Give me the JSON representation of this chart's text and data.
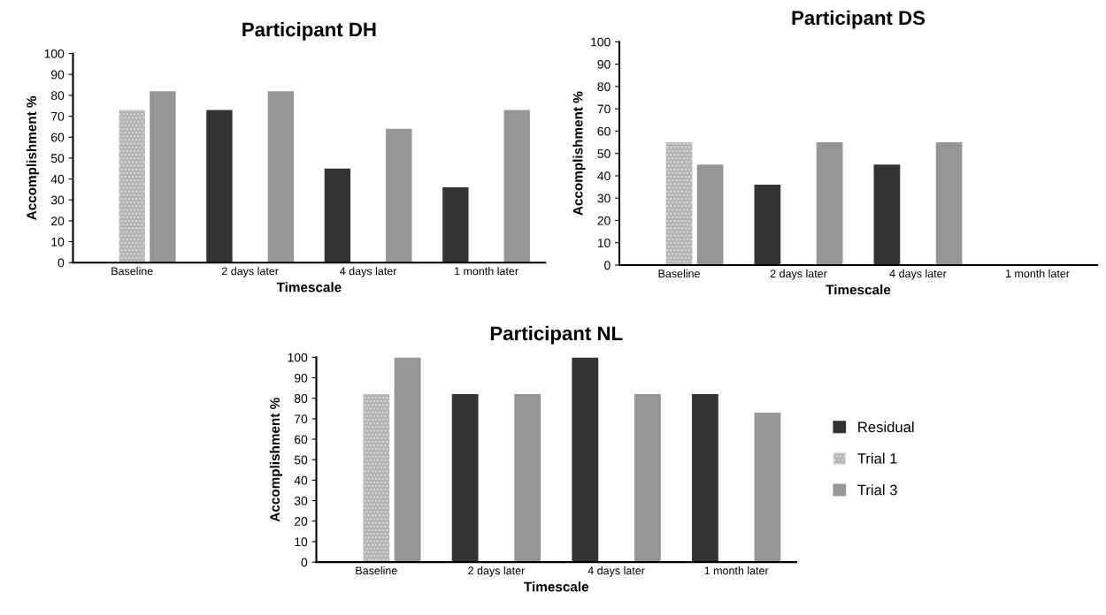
{
  "chart_data": [
    {
      "type": "bar",
      "title": "Participant DH",
      "xlabel": "Timescale",
      "ylabel": "Accomplishment %",
      "categories": [
        "Baseline",
        "2 days later",
        "4 days later",
        "1 month later"
      ],
      "ylim": [
        0,
        100
      ],
      "yticks": [
        0,
        10,
        20,
        30,
        40,
        50,
        60,
        70,
        80,
        90,
        100
      ],
      "grid": false,
      "legend": false,
      "series": [
        {
          "color": "#333333",
          "values": [
            null,
            73,
            45,
            36
          ]
        },
        {
          "color": "#b4b4b4",
          "values": [
            73,
            null,
            null,
            null
          ]
        },
        {
          "color": "#969696",
          "values": [
            82,
            82,
            64,
            73
          ]
        }
      ]
    },
    {
      "type": "bar",
      "title": "Participant DS",
      "xlabel": "Timescale",
      "ylabel": "Accomplishment %",
      "categories": [
        "Baseline",
        "2 days later",
        "4 days later",
        "1 month later"
      ],
      "ylim": [
        0,
        100
      ],
      "yticks": [
        0,
        10,
        20,
        30,
        40,
        50,
        60,
        70,
        80,
        90,
        100
      ],
      "grid": false,
      "legend": false,
      "series": [
        {
          "color": "#333333",
          "values": [
            null,
            36,
            45,
            null
          ]
        },
        {
          "color": "#b4b4b4",
          "values": [
            55,
            null,
            null,
            null
          ]
        },
        {
          "color": "#969696",
          "values": [
            45,
            55,
            55,
            null
          ]
        }
      ]
    },
    {
      "type": "bar",
      "title": "Participant NL",
      "xlabel": "Timescale",
      "ylabel": "Accomplishment %",
      "categories": [
        "Baseline",
        "2 days later",
        "4 days later",
        "1 month later"
      ],
      "ylim": [
        0,
        100
      ],
      "yticks": [
        0,
        10,
        20,
        30,
        40,
        50,
        60,
        70,
        80,
        90,
        100
      ],
      "grid": false,
      "legend": "right",
      "series": [
        {
          "name": "Residual",
          "color": "#333333",
          "values": [
            null,
            82,
            100,
            82
          ]
        },
        {
          "name": "Trial 1",
          "color": "#b4b4b4",
          "values": [
            82,
            null,
            null,
            null
          ]
        },
        {
          "name": "Trial 3",
          "color": "#969696",
          "values": [
            100,
            82,
            82,
            73
          ]
        }
      ]
    }
  ]
}
